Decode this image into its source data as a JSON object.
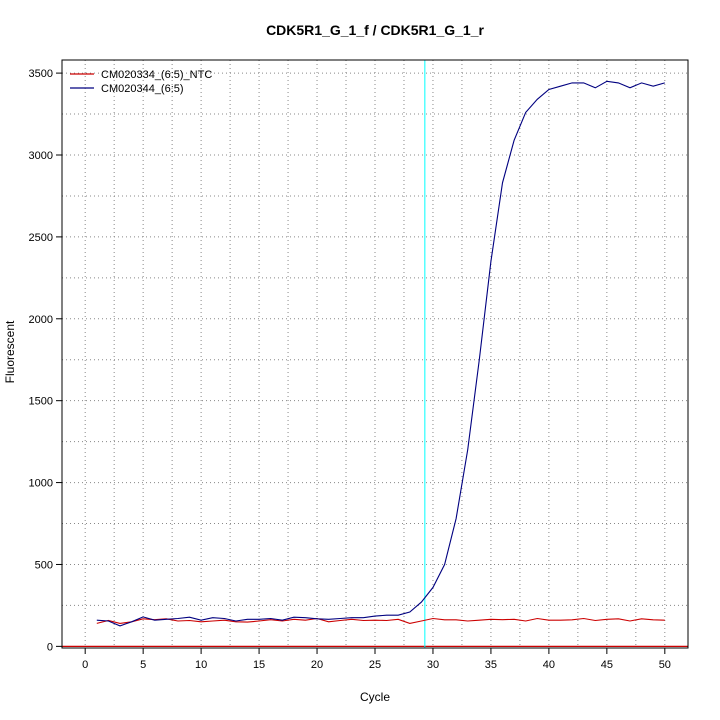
{
  "chart_data": {
    "type": "line",
    "title": "CDK5R1_G_1_f / CDK5R1_G_1_r",
    "xlabel": "Cycle",
    "ylabel": "Fluorescent",
    "xlim": [
      -2,
      52
    ],
    "ylim": [
      -10,
      3580
    ],
    "xticks": [
      0,
      5,
      10,
      15,
      20,
      25,
      30,
      35,
      40,
      45,
      50
    ],
    "yticks": [
      0,
      500,
      1000,
      1500,
      2000,
      2500,
      3000,
      3500
    ],
    "grid": true,
    "grid_style": "dotted",
    "legend_position": "top-left",
    "threshold_line": {
      "axis": "x",
      "value": 29.3,
      "color": "#00ffff"
    },
    "baseline": {
      "axis": "y",
      "value": 0,
      "color": "#cc0000"
    },
    "series": [
      {
        "name": "CM020334_(6:5)_NTC",
        "color": "#cc0000",
        "x": [
          1,
          2,
          3,
          4,
          5,
          6,
          7,
          8,
          9,
          10,
          11,
          12,
          13,
          14,
          15,
          16,
          17,
          18,
          19,
          20,
          21,
          22,
          23,
          24,
          25,
          26,
          27,
          28,
          29,
          30,
          31,
          32,
          33,
          34,
          35,
          36,
          37,
          38,
          39,
          40,
          41,
          42,
          43,
          44,
          45,
          46,
          47,
          48,
          49,
          50
        ],
        "y": [
          140,
          158,
          140,
          150,
          168,
          163,
          168,
          155,
          158,
          150,
          155,
          160,
          150,
          148,
          155,
          163,
          155,
          165,
          160,
          170,
          150,
          158,
          165,
          158,
          160,
          158,
          165,
          140,
          155,
          170,
          162,
          162,
          155,
          160,
          165,
          163,
          165,
          155,
          170,
          160,
          160,
          162,
          170,
          158,
          165,
          168,
          155,
          168,
          162,
          160
        ]
      },
      {
        "name": "CM020344_(6:5)",
        "color": "#000080",
        "x": [
          1,
          2,
          3,
          4,
          5,
          6,
          7,
          8,
          9,
          10,
          11,
          12,
          13,
          14,
          15,
          16,
          17,
          18,
          19,
          20,
          21,
          22,
          23,
          24,
          25,
          26,
          27,
          28,
          29,
          30,
          31,
          32,
          33,
          34,
          35,
          36,
          37,
          38,
          39,
          40,
          41,
          42,
          43,
          44,
          45,
          46,
          47,
          48,
          49,
          50
        ],
        "y": [
          160,
          155,
          125,
          150,
          180,
          160,
          165,
          170,
          178,
          160,
          175,
          170,
          155,
          165,
          165,
          170,
          160,
          178,
          175,
          168,
          165,
          170,
          175,
          175,
          185,
          190,
          190,
          210,
          270,
          360,
          500,
          780,
          1200,
          1750,
          2350,
          2830,
          3090,
          3260,
          3340,
          3400,
          3420,
          3440,
          3440,
          3410,
          3450,
          3440,
          3410,
          3440,
          3420,
          3440
        ]
      }
    ]
  }
}
